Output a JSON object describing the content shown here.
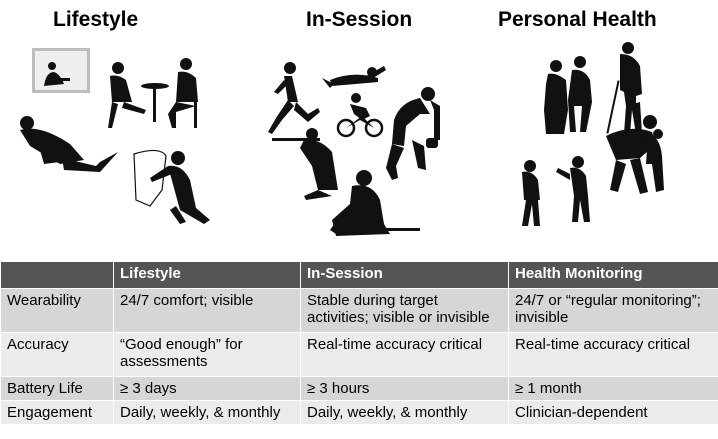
{
  "headings": {
    "lifestyle": "Lifestyle",
    "in_session": "In-Session",
    "personal_health": "Personal Health"
  },
  "table": {
    "columns": [
      "",
      "Lifestyle",
      "In-Session",
      "Health Monitoring"
    ],
    "rows": [
      {
        "label": "Wearability",
        "lifestyle": "24/7 comfort; visible",
        "in_session": "Stable during target activities; visible or invisible",
        "health_monitoring": "24/7 or “regular monitoring”; invisible"
      },
      {
        "label": "Accuracy",
        "lifestyle": "“Good enough” for assessments",
        "in_session": "Real-time accuracy critical",
        "health_monitoring": "Real-time accuracy critical"
      },
      {
        "label": "Battery Life",
        "lifestyle": "≥ 3 days",
        "in_session": "≥ 3 hours",
        "health_monitoring": "≥ 1 month"
      },
      {
        "label": "Engagement",
        "lifestyle": "Daily, weekly, & monthly",
        "in_session": "Daily, weekly, & monthly",
        "health_monitoring": "Clinician-dependent"
      }
    ]
  },
  "colors": {
    "header_bg": "#555555",
    "row_dark": "#d6d6d6",
    "row_light": "#ebebeb",
    "silhouette": "#111111"
  },
  "icons": [
    "laptop-user-icon",
    "cafe-couple-icon",
    "reading-person-icon",
    "woman-on-chair-icon",
    "runner-icon",
    "swimmer-icon",
    "cyclist-icon",
    "weightlifter-icon",
    "shooter-icon",
    "firefighter-icon",
    "elderly-couple-icon",
    "elderly-man-cane-icon",
    "children-icon",
    "parent-child-icon"
  ]
}
